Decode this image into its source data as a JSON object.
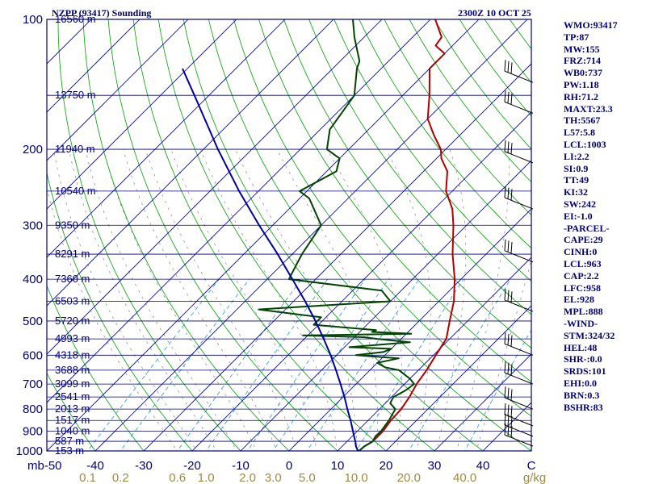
{
  "header": {
    "station": "NZPP (93417) Sounding",
    "time": "2300Z 10 OCT 25"
  },
  "indices": [
    "WMO:93417",
    "TP:87",
    "MW:155",
    "FRZ:714",
    "WB0:737",
    "PW:1.18",
    "RH:71.2",
    "MAXT:23.3",
    "TH:5567",
    "L57:5.8",
    "LCL:1003",
    "LI:2.2",
    "SI:0.9",
    "TT:49",
    "KI:32",
    "SW:242",
    "EI:-1.0",
    "-PARCEL-",
    "CAPE:29",
    "CINH:0",
    "LCL:963",
    "CAP:2.2",
    "LFC:958",
    "EL:928",
    "MPL:888",
    "-WIND-",
    "STM:324/32",
    "HEL:48",
    "SHR-:0.0",
    "SRDS:101",
    "EHI:0.0",
    "BRN:0.3",
    "BSHR:83"
  ],
  "chart_data": {
    "type": "skew-t",
    "pressure_axis": {
      "unit": "mb",
      "range": [
        1000,
        100
      ],
      "scale": "log",
      "ticks": [
        1000,
        900,
        800,
        700,
        600,
        500,
        400,
        300,
        200,
        100
      ],
      "tick_labels": [
        "1000",
        "900",
        "800",
        "700",
        "600",
        "500",
        "400",
        "300",
        "200",
        "100"
      ]
    },
    "temperature_axis": {
      "range": [
        -50,
        50
      ],
      "ticks": [
        -50,
        -40,
        -30,
        -20,
        -10,
        0,
        10,
        20,
        30,
        40,
        50
      ],
      "tick_labels": [
        "mb-50",
        "-40",
        "-30",
        "-20",
        "-10",
        "0",
        "10",
        "20",
        "30",
        "40",
        "C"
      ]
    },
    "mixing_ratio_labels": {
      "unit": "g/kg",
      "values": [
        0.1,
        0.2,
        0.6,
        1.0,
        2.0,
        3.0,
        5.0,
        10.0,
        20.0,
        40.0
      ],
      "labels": [
        "0.1",
        "0.2",
        "0.6",
        "1.0",
        "2.0",
        "3.0",
        "5.0",
        "10.0",
        "20.0",
        "40.0"
      ]
    },
    "height_levels": [
      {
        "p": 100,
        "label": "16560 m"
      },
      {
        "p": 150,
        "label": "13750 m"
      },
      {
        "p": 200,
        "label": "11940 m"
      },
      {
        "p": 250,
        "label": "10540 m"
      },
      {
        "p": 300,
        "label": "9350 m"
      },
      {
        "p": 350,
        "label": "8291 m"
      },
      {
        "p": 400,
        "label": "7360 m"
      },
      {
        "p": 450,
        "label": "6503 m"
      },
      {
        "p": 500,
        "label": "5720 m"
      },
      {
        "p": 550,
        "label": "4993 m"
      },
      {
        "p": 600,
        "label": "4318 m"
      },
      {
        "p": 650,
        "label": "3688 m"
      },
      {
        "p": 700,
        "label": "3099 m"
      },
      {
        "p": 750,
        "label": "2541 m"
      },
      {
        "p": 800,
        "label": "2013 m"
      },
      {
        "p": 850,
        "label": "1517 m"
      },
      {
        "p": 900,
        "label": "1040 m"
      },
      {
        "p": 950,
        "label": "587 m"
      },
      {
        "p": 1000,
        "label": "153 m"
      }
    ],
    "series": [
      {
        "key": "temperature",
        "color": "#b00000",
        "points": [
          [
            1003,
            14.4
          ],
          [
            975,
            14.6
          ],
          [
            950,
            15.3
          ],
          [
            925,
            15.3
          ],
          [
            900,
            15.3
          ],
          [
            850,
            14.7
          ],
          [
            800,
            14.5
          ],
          [
            750,
            13.7
          ],
          [
            700,
            12.5
          ],
          [
            650,
            11.7
          ],
          [
            600,
            10.5
          ],
          [
            550,
            9.3
          ],
          [
            500,
            6.3
          ],
          [
            450,
            3.1
          ],
          [
            400,
            -1.3
          ],
          [
            350,
            -6.9
          ],
          [
            300,
            -12.7
          ],
          [
            275,
            -16.3
          ],
          [
            250,
            -21.3
          ],
          [
            225,
            -25.1
          ],
          [
            210,
            -29.0
          ],
          [
            200,
            -31.0
          ],
          [
            185,
            -35.5
          ],
          [
            170,
            -40.0
          ],
          [
            150,
            -44.5
          ],
          [
            130,
            -50.0
          ],
          [
            120,
            -50.0
          ],
          [
            115,
            -53.5
          ],
          [
            110,
            -54.0
          ],
          [
            100,
            -59.0
          ]
        ]
      },
      {
        "key": "dewpoint",
        "color": "#004400",
        "points": [
          [
            1003,
            14.4
          ],
          [
            975,
            14.6
          ],
          [
            950,
            15.3
          ],
          [
            925,
            14.8
          ],
          [
            900,
            14.9
          ],
          [
            850,
            14.3
          ],
          [
            800,
            13.3
          ],
          [
            775,
            11.0
          ],
          [
            750,
            10.4
          ],
          [
            725,
            11.5
          ],
          [
            700,
            12.0
          ],
          [
            680,
            10.0
          ],
          [
            650,
            6.0
          ],
          [
            640,
            2.5
          ],
          [
            625,
            0.0
          ],
          [
            610,
            3.5
          ],
          [
            600,
            -6.0
          ],
          [
            590,
            -1.0
          ],
          [
            580,
            0.0
          ],
          [
            575,
            -9.0
          ],
          [
            560,
            2.5
          ],
          [
            550,
            -5.0
          ],
          [
            545,
            -8.0
          ],
          [
            540,
            -21.0
          ],
          [
            535,
            1.0
          ],
          [
            530,
            -7.5
          ],
          [
            525,
            -7.0
          ],
          [
            510,
            -21.0
          ],
          [
            490,
            -21.0
          ],
          [
            470,
            -35.5
          ],
          [
            450,
            -10.0
          ],
          [
            425,
            -14.0
          ],
          [
            400,
            -35.5
          ],
          [
            390,
            -36.0
          ],
          [
            350,
            -38.0
          ],
          [
            300,
            -40.0
          ],
          [
            260,
            -48.0
          ],
          [
            250,
            -51.5
          ],
          [
            225,
            -48.0
          ],
          [
            210,
            -50.0
          ],
          [
            200,
            -54.5
          ],
          [
            180,
            -58.0
          ],
          [
            150,
            -60.0
          ],
          [
            130,
            -65.0
          ],
          [
            125,
            -66.0
          ],
          [
            110,
            -72.0
          ],
          [
            100,
            -76.0
          ]
        ]
      },
      {
        "key": "parcel",
        "color": "#0000a0",
        "points": [
          [
            1003,
            14.4
          ],
          [
            975,
            12.8
          ],
          [
            950,
            11.7
          ],
          [
            925,
            10.4
          ],
          [
            900,
            9.1
          ],
          [
            850,
            6.4
          ],
          [
            800,
            3.4
          ],
          [
            750,
            0.3
          ],
          [
            700,
            -3.2
          ],
          [
            650,
            -7.0
          ],
          [
            600,
            -11.2
          ],
          [
            550,
            -16.0
          ],
          [
            500,
            -21.4
          ],
          [
            450,
            -27.6
          ],
          [
            400,
            -34.8
          ],
          [
            350,
            -43.0
          ],
          [
            300,
            -52.8
          ],
          [
            250,
            -64.0
          ],
          [
            200,
            -77.0
          ],
          [
            150,
            -93.0
          ],
          [
            130,
            -101.0
          ]
        ]
      }
    ],
    "wind_barbs": [
      {
        "p": 975
      },
      {
        "p": 925
      },
      {
        "p": 875
      },
      {
        "p": 800
      },
      {
        "p": 700
      },
      {
        "p": 600
      },
      {
        "p": 475
      },
      {
        "p": 365
      },
      {
        "p": 275
      },
      {
        "p": 215
      },
      {
        "p": 165
      },
      {
        "p": 140
      }
    ],
    "grid": true
  }
}
